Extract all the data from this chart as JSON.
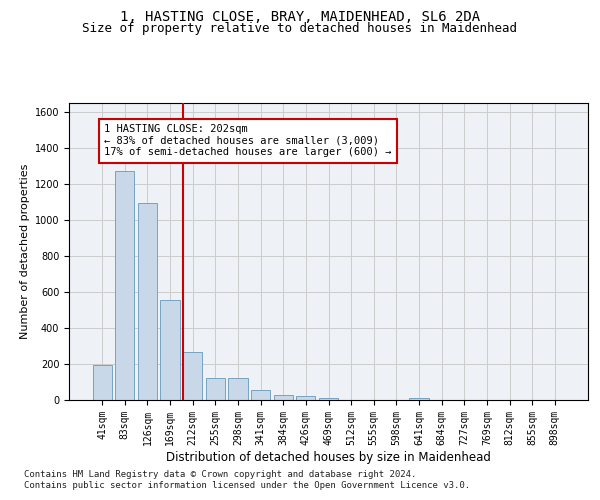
{
  "title_line1": "1, HASTING CLOSE, BRAY, MAIDENHEAD, SL6 2DA",
  "title_line2": "Size of property relative to detached houses in Maidenhead",
  "xlabel": "Distribution of detached houses by size in Maidenhead",
  "ylabel": "Number of detached properties",
  "categories": [
    "41sqm",
    "83sqm",
    "126sqm",
    "169sqm",
    "212sqm",
    "255sqm",
    "298sqm",
    "341sqm",
    "384sqm",
    "426sqm",
    "469sqm",
    "512sqm",
    "555sqm",
    "598sqm",
    "641sqm",
    "684sqm",
    "727sqm",
    "769sqm",
    "812sqm",
    "855sqm",
    "898sqm"
  ],
  "values": [
    195,
    1270,
    1095,
    555,
    265,
    120,
    120,
    58,
    30,
    22,
    12,
    0,
    0,
    0,
    12,
    0,
    0,
    0,
    0,
    0,
    0
  ],
  "bar_color": "#c8d8e8",
  "bar_edge_color": "#6699bb",
  "vline_color": "#cc0000",
  "annotation_text": "1 HASTING CLOSE: 202sqm\n← 83% of detached houses are smaller (3,009)\n17% of semi-detached houses are larger (600) →",
  "annotation_box_color": "#cc0000",
  "ylim": [
    0,
    1650
  ],
  "yticks": [
    0,
    200,
    400,
    600,
    800,
    1000,
    1200,
    1400,
    1600
  ],
  "grid_color": "#cccccc",
  "bg_color": "#eef2f7",
  "footer_line1": "Contains HM Land Registry data © Crown copyright and database right 2024.",
  "footer_line2": "Contains public sector information licensed under the Open Government Licence v3.0.",
  "title_fontsize": 10,
  "subtitle_fontsize": 9,
  "tick_fontsize": 7,
  "ylabel_fontsize": 8,
  "xlabel_fontsize": 8.5,
  "footer_fontsize": 6.5,
  "ann_fontsize": 7.5
}
